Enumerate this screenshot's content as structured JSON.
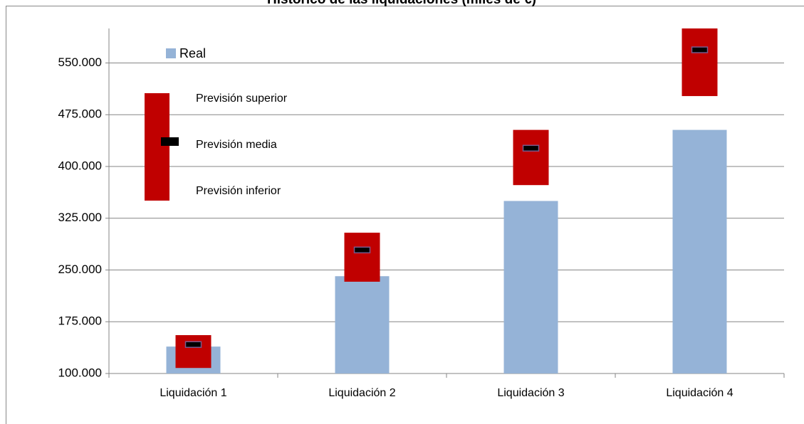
{
  "chart_data": {
    "type": "bar",
    "title": "Histórico de las liquidaciones (miles de €)",
    "categories": [
      "Liquidación 1",
      "Liquidación 2",
      "Liquidación 3",
      "Liquidación 4"
    ],
    "series": [
      {
        "name": "Real",
        "color": "#95b3d7",
        "values": [
          139000,
          241000,
          350000,
          453000
        ]
      },
      {
        "name": "Previsión superior",
        "color": "#c00000",
        "values": [
          155600,
          304000,
          453000,
          600000
        ]
      },
      {
        "name": "Previsión media",
        "color": "#000000",
        "values": [
          142000,
          279000,
          426500,
          569000
        ]
      },
      {
        "name": "Previsión inferior",
        "color": "#c00000",
        "values": [
          108000,
          233000,
          373000,
          502000
        ]
      }
    ],
    "ylim": [
      100000,
      600000
    ],
    "yticks": [
      {
        "value": 100000,
        "label": "100.000"
      },
      {
        "value": 175000,
        "label": "175.000"
      },
      {
        "value": 250000,
        "label": "250.000"
      },
      {
        "value": 325000,
        "label": "325.000"
      },
      {
        "value": 400000,
        "label": "400.000"
      },
      {
        "value": 475000,
        "label": "475.000"
      },
      {
        "value": 550000,
        "label": "550.000"
      }
    ],
    "grid": true
  }
}
